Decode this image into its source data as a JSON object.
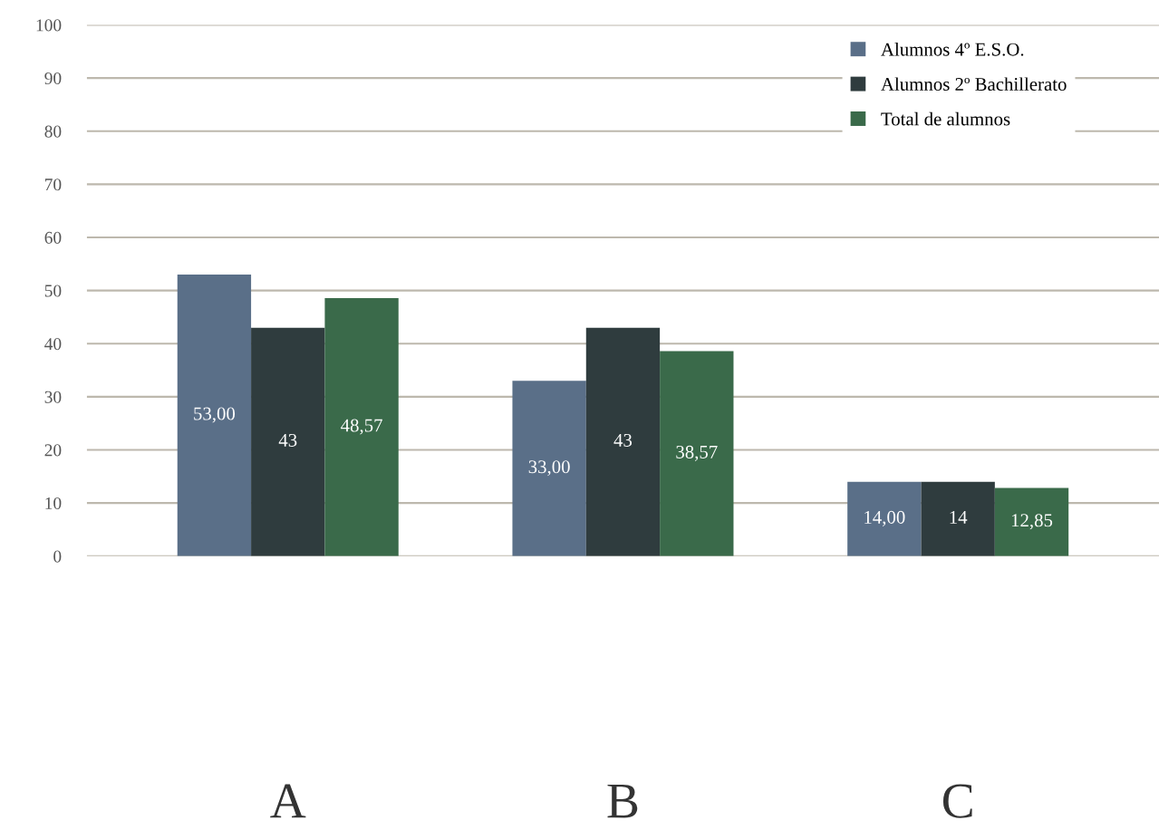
{
  "chart_data": {
    "type": "bar",
    "categories": [
      "A",
      "B",
      "C"
    ],
    "series": [
      {
        "name": "Alumnos 4º E.S.O.",
        "color": "#5a6f88",
        "values": [
          53,
          33,
          14
        ],
        "value_labels": [
          "53,00",
          "33,00",
          "14,00"
        ]
      },
      {
        "name": "Alumnos 2º Bachillerato",
        "color": "#2f3c3e",
        "values": [
          43,
          43,
          14
        ],
        "value_labels": [
          "43",
          "43",
          "14"
        ]
      },
      {
        "name": "Total de alumnos",
        "color": "#3a6a4a",
        "values": [
          48.57,
          38.57,
          12.85
        ],
        "value_labels": [
          "48,57",
          "38,57",
          "12,85"
        ]
      }
    ],
    "ylim": [
      0,
      100
    ],
    "yticks": [
      0,
      10,
      20,
      30,
      40,
      50,
      60,
      70,
      80,
      90,
      100
    ],
    "grid": "y",
    "legend": "top right"
  }
}
